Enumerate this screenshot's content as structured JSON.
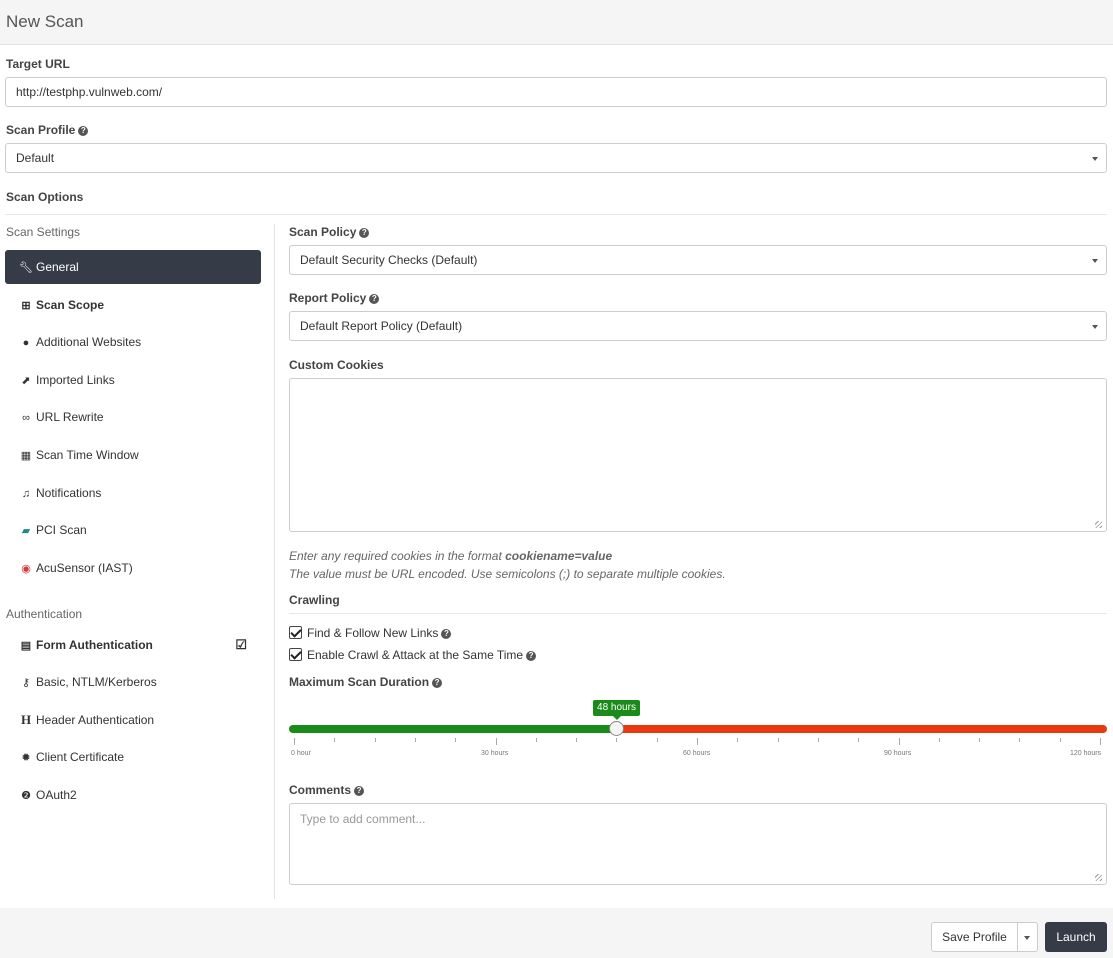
{
  "header": {
    "title": "New Scan"
  },
  "target": {
    "label": "Target URL",
    "value": "http://testphp.vulnweb.com/"
  },
  "scan_profile": {
    "label": "Scan Profile",
    "value": "Default"
  },
  "scan_options_label": "Scan Options",
  "sidebar": {
    "settings_label": "Scan Settings",
    "items": [
      {
        "label": "General",
        "icon": "wrench-icon"
      },
      {
        "label": "Scan Scope",
        "icon": "sitemap-icon"
      },
      {
        "label": "Additional Websites",
        "icon": "globe-icon"
      },
      {
        "label": "Imported Links",
        "icon": "external-link-icon"
      },
      {
        "label": "URL Rewrite",
        "icon": "link-icon"
      },
      {
        "label": "Scan Time Window",
        "icon": "calendar-icon"
      },
      {
        "label": "Notifications",
        "icon": "bell-icon"
      },
      {
        "label": "PCI Scan",
        "icon": "pci-icon"
      },
      {
        "label": "AcuSensor (IAST)",
        "icon": "acusensor-icon"
      }
    ],
    "auth_label": "Authentication",
    "auth_items": [
      {
        "label": "Form Authentication",
        "icon": "form-icon"
      },
      {
        "label": "Basic, NTLM/Kerberos",
        "icon": "key-icon"
      },
      {
        "label": "Header Authentication",
        "icon": "header-icon"
      },
      {
        "label": "Client Certificate",
        "icon": "certificate-icon"
      },
      {
        "label": "OAuth2",
        "icon": "oauth-icon"
      }
    ]
  },
  "main": {
    "scan_policy": {
      "label": "Scan Policy",
      "value": "Default Security Checks (Default)"
    },
    "report_policy": {
      "label": "Report Policy",
      "value": "Default Report Policy (Default)"
    },
    "custom_cookies": {
      "label": "Custom Cookies",
      "hint_prefix": "Enter any required cookies in the format ",
      "hint_format": "cookiename=value",
      "hint_line2": "The value must be URL encoded. Use semicolons (;) to separate multiple cookies."
    },
    "crawling": {
      "label": "Crawling",
      "find_follow": "Find & Follow New Links",
      "crawl_attack": "Enable Crawl & Attack at the Same Time"
    },
    "duration": {
      "label": "Maximum Scan Duration",
      "value_label": "48 hours",
      "value_hours": 48,
      "max_hours": 120,
      "ticks": [
        "0 hour",
        "30 hours",
        "60 hours",
        "90 hours",
        "120 hours"
      ]
    },
    "comments": {
      "label": "Comments",
      "placeholder": "Type to add comment..."
    }
  },
  "footer": {
    "save_profile": "Save Profile",
    "launch": "Launch"
  }
}
